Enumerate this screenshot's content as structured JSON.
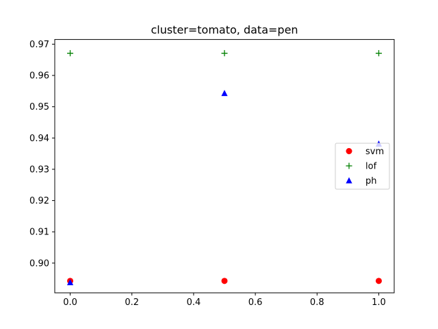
{
  "chart_data": {
    "type": "scatter",
    "title": "cluster=tomato, data=pen",
    "xlabel": "",
    "ylabel": "",
    "xlim": [
      -0.05,
      1.05
    ],
    "ylim": [
      0.8905,
      0.9715
    ],
    "xticks": [
      "0.0",
      "0.2",
      "0.4",
      "0.6",
      "0.8",
      "1.0"
    ],
    "yticks": [
      "0.90",
      "0.91",
      "0.92",
      "0.93",
      "0.94",
      "0.95",
      "0.96",
      "0.97"
    ],
    "grid": false,
    "legend_position": "center-right",
    "series": [
      {
        "name": "svm",
        "marker": "circle",
        "color": "#ff0000",
        "x": [
          0.0,
          0.5,
          1.0
        ],
        "y": [
          0.8943,
          0.8943,
          0.8943
        ]
      },
      {
        "name": "lof",
        "marker": "plus",
        "color": "#008000",
        "x": [
          0.0,
          0.5,
          1.0
        ],
        "y": [
          0.9671,
          0.9671,
          0.9671
        ]
      },
      {
        "name": "ph",
        "marker": "triangle",
        "color": "#0000ff",
        "x": [
          0.0,
          0.5,
          1.0
        ],
        "y": [
          0.8938,
          0.9543,
          0.9381
        ]
      }
    ]
  }
}
